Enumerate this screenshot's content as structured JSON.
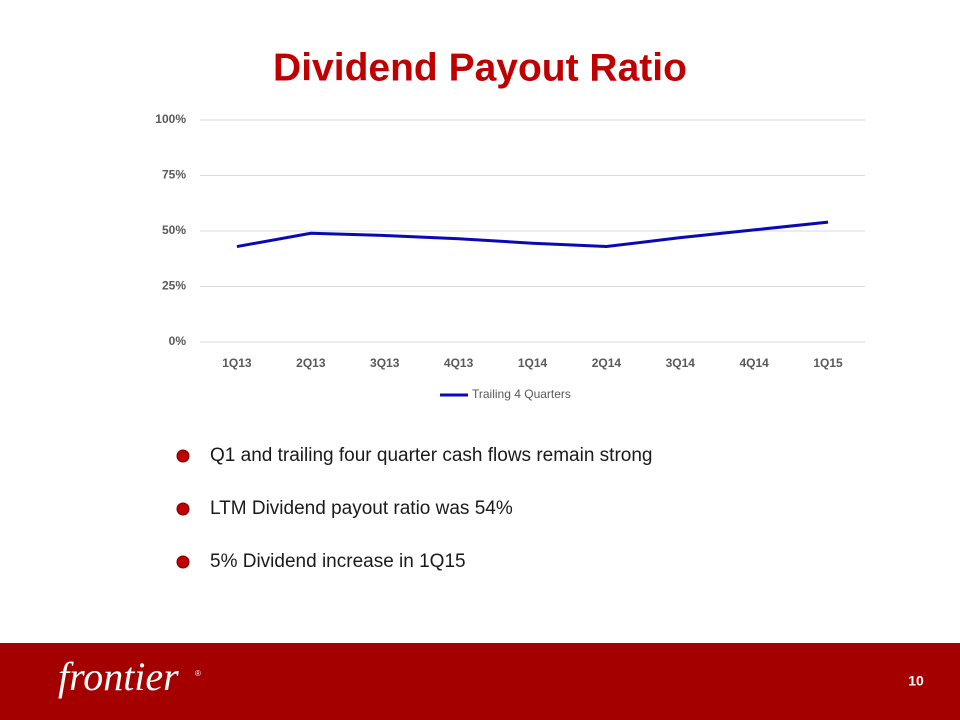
{
  "chart_data": {
    "type": "line",
    "title": "Dividend Payout Ratio",
    "categories": [
      "1Q13",
      "2Q13",
      "3Q13",
      "4Q13",
      "1Q14",
      "2Q14",
      "3Q14",
      "4Q14",
      "1Q15"
    ],
    "series": [
      {
        "name": "Trailing 4 Quarters",
        "color": "#0a0ab4",
        "values": [
          43,
          49,
          48,
          46.5,
          44.5,
          43,
          47,
          50.5,
          54
        ]
      }
    ],
    "ylim": [
      0,
      100
    ],
    "yticks": [
      {
        "value": 0,
        "label": "0%"
      },
      {
        "value": 25,
        "label": "25%"
      },
      {
        "value": 50,
        "label": "50%"
      },
      {
        "value": 75,
        "label": "75%"
      },
      {
        "value": 100,
        "label": "100%"
      }
    ],
    "grid": true,
    "legend": "bottom"
  },
  "bullets": [
    "Q1 and trailing four quarter cash flows remain strong",
    "LTM Dividend payout ratio was 54%",
    "5% Dividend increase in 1Q15"
  ],
  "footer": {
    "logo": "frontier",
    "registered": "®",
    "page_number": "10"
  }
}
